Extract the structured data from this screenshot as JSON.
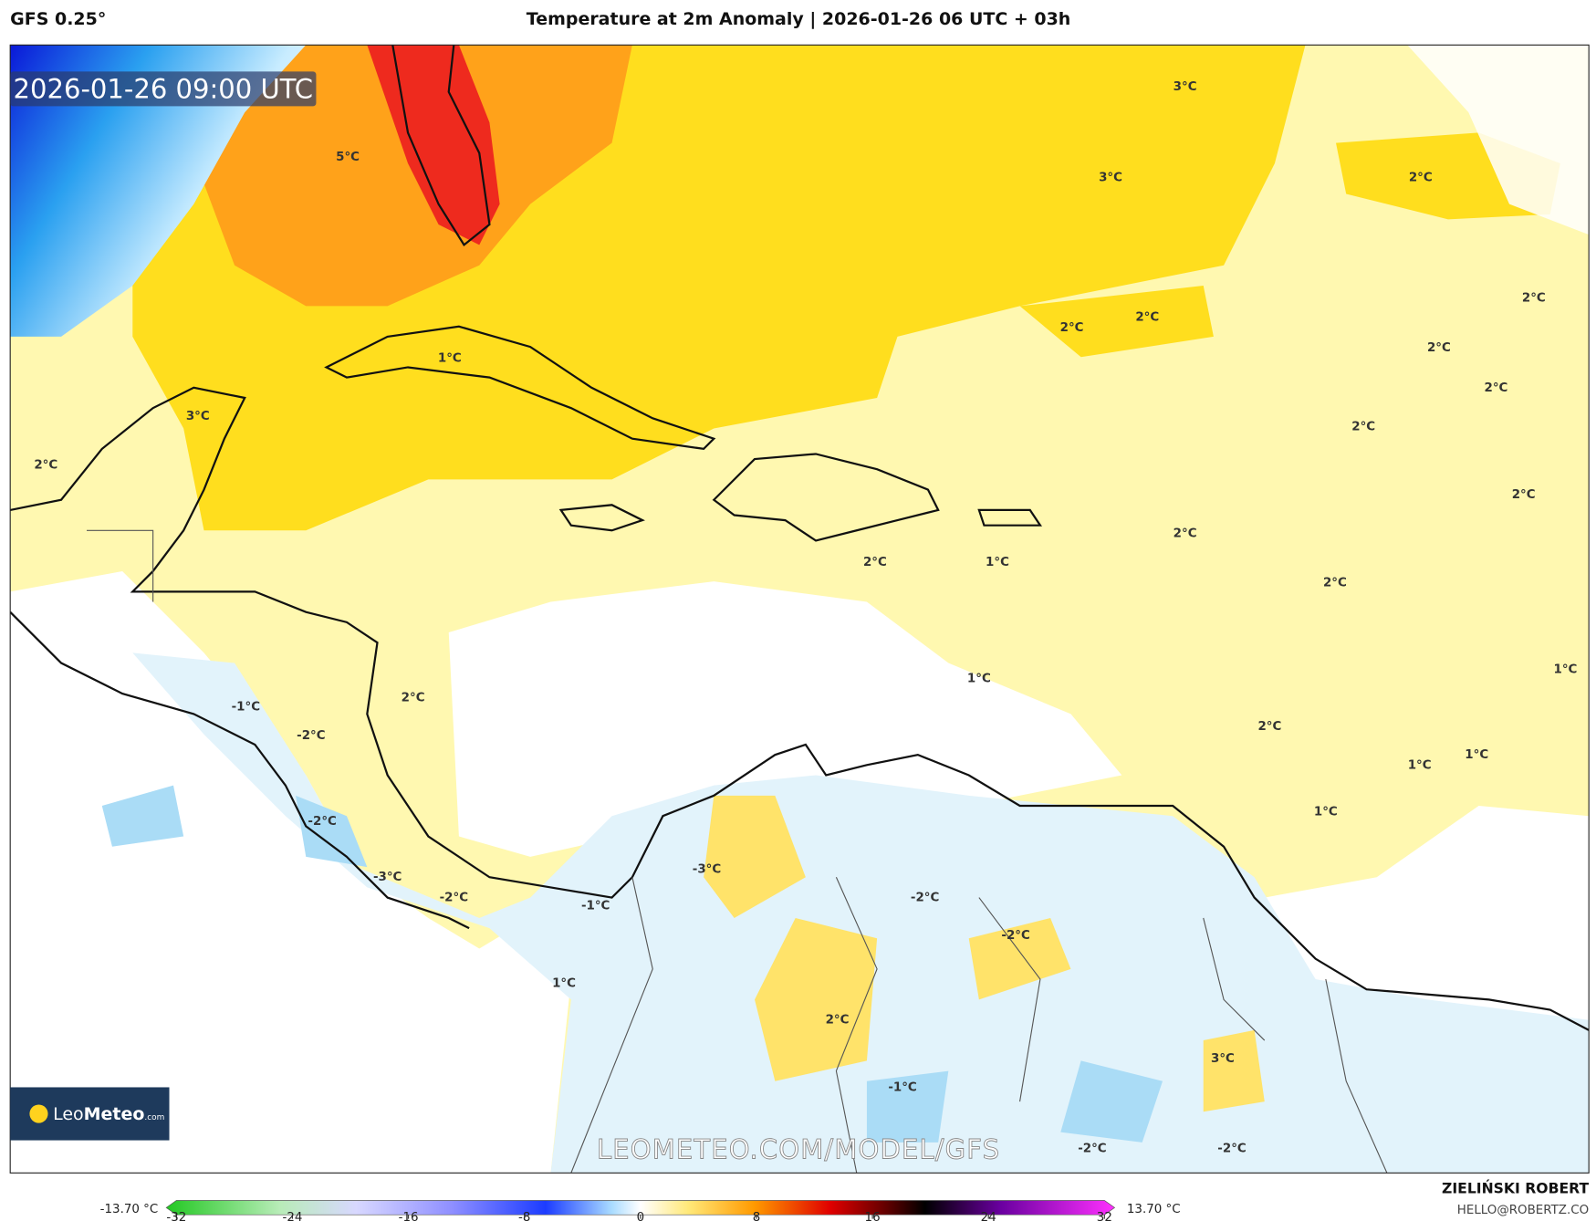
{
  "header": {
    "model": "GFS 0.25°",
    "title": "Temperature at 2m Anomaly | 2026-01-26 06 UTC + 03h"
  },
  "map": {
    "timestamp": "2026-01-26 09:00 UTC",
    "watermark": "LEOMETEO.COM/MODEL/GFS",
    "logo": {
      "brand": "Leo",
      "brand_bold": "Meteo",
      "suffix": ".com"
    },
    "labels": [
      "3°C",
      "5°C",
      "3°C",
      "2°C",
      "2°C",
      "2°C",
      "2°C",
      "2°C",
      "1°C",
      "2°C",
      "3°C",
      "2°C",
      "2°C",
      "2°C",
      "2°C",
      "2°C",
      "1°C",
      "2°C",
      "1°C",
      "1°C",
      "2°C",
      "-1°C",
      "-2°C",
      "2°C",
      "1°C",
      "1°C",
      "1°C",
      "-2°C",
      "-3°C",
      "-3°C",
      "-2°C",
      "-2°C",
      "-1°C",
      "-2°C",
      "1°C",
      "2°C",
      "3°C",
      "-1°C",
      "-2°C",
      "-2°C"
    ]
  },
  "colorbar": {
    "min_label": "-13.70 °C",
    "max_label": "13.70 °C",
    "ticks": [
      -32,
      -24,
      -16,
      -8,
      0,
      8,
      16,
      24,
      32
    ]
  },
  "footer": {
    "author": "ZIELIŃSKI ROBERT",
    "email": "HELLO@ROBERTZ.CO"
  }
}
